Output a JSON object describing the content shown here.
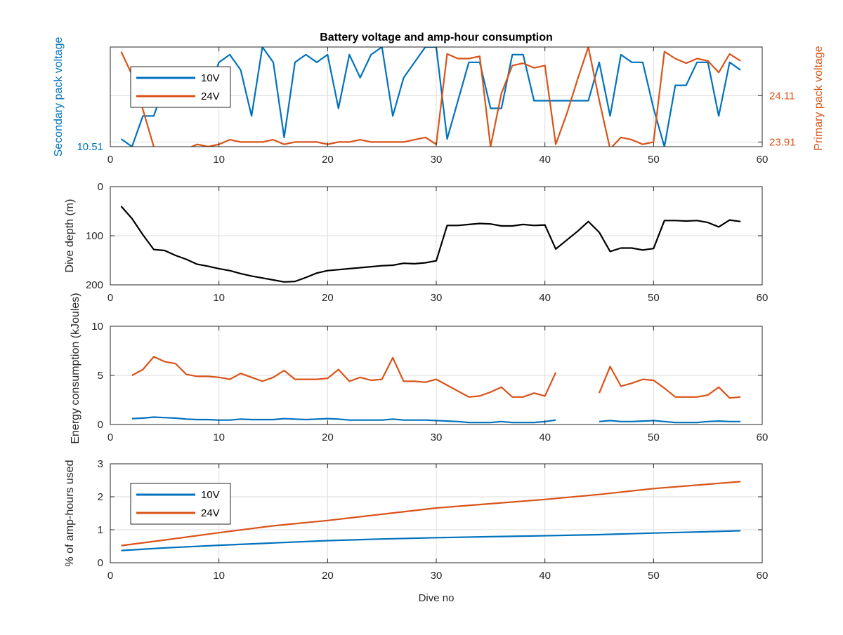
{
  "figure_title": "Battery voltage and amp-hour consumption",
  "colors": {
    "blue": "#0072BD",
    "orange": "#D95319",
    "black": "#000000",
    "grid": "#dcdcdc",
    "axis": "#262626"
  },
  "chart_data": [
    {
      "type": "line",
      "title": "Battery voltage and amp-hour consumption",
      "xlabel": "",
      "ylabel": "Secondary pack voltage",
      "ylabel_right": "Primary pack voltage",
      "xlim": [
        0,
        60
      ],
      "ylim": [
        10.51,
        10.64
      ],
      "ylim_right": [
        23.89,
        24.32
      ],
      "xticks": [
        "0",
        "10",
        "20",
        "30",
        "40",
        "50",
        "60"
      ],
      "yticks": [
        {
          "value": 10.51,
          "label": "10.51"
        }
      ],
      "yticks_right": [
        {
          "value": 23.91,
          "label": "23.91"
        },
        {
          "value": 24.11,
          "label": "24.11"
        }
      ],
      "grid": true,
      "legend": "top-left",
      "legend_entries": [
        "10V",
        "24V"
      ],
      "series": [
        {
          "name": "10V",
          "axis": "left",
          "color": "#0072BD",
          "x": [
            1,
            2,
            3,
            4,
            5,
            6,
            7,
            8,
            9,
            10,
            11,
            12,
            13,
            14,
            15,
            16,
            17,
            18,
            19,
            20,
            21,
            22,
            23,
            24,
            25,
            26,
            27,
            28,
            29,
            30,
            31,
            32,
            33,
            34,
            35,
            36,
            37,
            38,
            39,
            40,
            41,
            42,
            43,
            44,
            45,
            46,
            47,
            48,
            49,
            50,
            51,
            52,
            53,
            54,
            55,
            56,
            57,
            58
          ],
          "values": [
            10.52,
            10.51,
            10.55,
            10.55,
            10.59,
            10.6,
            10.6,
            10.61,
            10.58,
            10.62,
            10.63,
            10.61,
            10.55,
            10.64,
            10.62,
            10.522,
            10.62,
            10.63,
            10.62,
            10.63,
            10.56,
            10.63,
            10.6,
            10.63,
            10.64,
            10.55,
            10.6,
            10.62,
            10.64,
            10.64,
            10.52,
            10.57,
            10.62,
            10.62,
            10.56,
            10.56,
            10.63,
            10.63,
            10.57,
            10.57,
            10.57,
            10.57,
            10.57,
            10.57,
            10.62,
            10.55,
            10.63,
            10.62,
            10.62,
            10.56,
            10.51,
            10.59,
            10.59,
            10.62,
            10.62,
            10.55,
            10.62,
            10.61
          ]
        },
        {
          "name": "24V",
          "axis": "right",
          "color": "#D95319",
          "x": [
            1,
            2,
            3,
            4,
            5,
            6,
            7,
            8,
            9,
            10,
            11,
            12,
            13,
            14,
            15,
            16,
            17,
            18,
            19,
            20,
            21,
            22,
            23,
            24,
            25,
            26,
            27,
            28,
            29,
            30,
            31,
            32,
            33,
            34,
            35,
            36,
            37,
            38,
            39,
            40,
            41,
            42,
            43,
            44,
            45,
            46,
            47,
            48,
            49,
            50,
            51,
            52,
            53,
            54,
            55,
            56,
            57,
            58
          ],
          "values": [
            24.3,
            24.2,
            24.05,
            23.89,
            23.87,
            23.87,
            23.88,
            23.9,
            23.89,
            23.9,
            23.92,
            23.91,
            23.91,
            23.91,
            23.92,
            23.9,
            23.91,
            23.91,
            23.91,
            23.9,
            23.91,
            23.91,
            23.92,
            23.91,
            23.91,
            23.91,
            23.91,
            23.92,
            23.93,
            23.9,
            24.29,
            24.27,
            24.27,
            24.28,
            23.89,
            24.12,
            24.24,
            24.25,
            24.23,
            24.24,
            23.9,
            24.03,
            24.18,
            24.32,
            24.09,
            23.88,
            23.93,
            23.92,
            23.9,
            23.91,
            24.3,
            24.27,
            24.25,
            24.27,
            24.26,
            24.21,
            24.29,
            24.26
          ]
        }
      ]
    },
    {
      "type": "line",
      "xlabel": "",
      "ylabel": "Dive depth (m)",
      "xlim": [
        0,
        60
      ],
      "ylim": [
        0,
        200
      ],
      "reversed_y": true,
      "xticks": [
        "0",
        "10",
        "20",
        "30",
        "40",
        "50",
        "60"
      ],
      "yticks": [
        {
          "value": 0,
          "label": "0"
        },
        {
          "value": 100,
          "label": "100"
        },
        {
          "value": 200,
          "label": "200"
        }
      ],
      "grid": true,
      "series": [
        {
          "color": "#000000",
          "x": [
            1,
            2,
            3,
            4,
            5,
            6,
            7,
            8,
            9,
            10,
            11,
            12,
            13,
            14,
            15,
            16,
            17,
            18,
            19,
            20,
            21,
            22,
            23,
            24,
            25,
            26,
            27,
            28,
            29,
            30,
            31,
            32,
            33,
            34,
            35,
            36,
            37,
            38,
            39,
            40,
            41,
            42,
            43,
            44,
            45,
            46,
            47,
            48,
            49,
            50,
            51,
            52,
            53,
            54,
            55,
            56,
            57,
            58
          ],
          "values": [
            40,
            65,
            98,
            128,
            130,
            140,
            148,
            158,
            162,
            167,
            171,
            177,
            182,
            186,
            190,
            194,
            193,
            185,
            176,
            171,
            169,
            167,
            165,
            163,
            161,
            160,
            156,
            157,
            155,
            151,
            79,
            79,
            77,
            75,
            76,
            80,
            80,
            77,
            79,
            78,
            127,
            109,
            91,
            71,
            93,
            132,
            125,
            125,
            129,
            126,
            69,
            69,
            70,
            69,
            73,
            82,
            68,
            71
          ]
        }
      ]
    },
    {
      "type": "line",
      "xlabel": "",
      "ylabel": "Energy consumption (kJoules)",
      "xlim": [
        0,
        60
      ],
      "ylim": [
        0,
        10
      ],
      "xticks": [
        "0",
        "10",
        "20",
        "30",
        "40",
        "50",
        "60"
      ],
      "yticks": [
        {
          "value": 0,
          "label": "0"
        },
        {
          "value": 5,
          "label": "5"
        },
        {
          "value": 10,
          "label": "10"
        }
      ],
      "grid": true,
      "series": [
        {
          "color": "#0072BD",
          "x": [
            2,
            3,
            4,
            5,
            6,
            7,
            8,
            9,
            10,
            11,
            12,
            13,
            14,
            15,
            16,
            17,
            18,
            19,
            20,
            21,
            22,
            23,
            24,
            25,
            26,
            27,
            28,
            29,
            30,
            31,
            32,
            33,
            34,
            35,
            36,
            37,
            38,
            39,
            40,
            41,
            null,
            45,
            46,
            47,
            48,
            49,
            50,
            51,
            52,
            53,
            54,
            55,
            56,
            57,
            58
          ],
          "values": [
            0.6,
            0.65,
            0.75,
            0.7,
            0.65,
            0.55,
            0.5,
            0.5,
            0.45,
            0.45,
            0.55,
            0.5,
            0.5,
            0.5,
            0.6,
            0.55,
            0.5,
            0.55,
            0.6,
            0.55,
            0.45,
            0.45,
            0.45,
            0.45,
            0.55,
            0.45,
            0.45,
            0.45,
            0.4,
            0.35,
            0.3,
            0.2,
            0.2,
            0.2,
            0.3,
            0.2,
            0.2,
            0.2,
            0.3,
            0.45,
            null,
            0.3,
            0.4,
            0.3,
            0.3,
            0.35,
            0.4,
            0.3,
            0.2,
            0.2,
            0.2,
            0.3,
            0.35,
            0.3,
            0.3
          ]
        },
        {
          "color": "#D95319",
          "x": [
            2,
            3,
            4,
            5,
            6,
            7,
            8,
            9,
            10,
            11,
            12,
            13,
            14,
            15,
            16,
            17,
            18,
            19,
            20,
            21,
            22,
            23,
            24,
            25,
            26,
            27,
            28,
            29,
            30,
            31,
            32,
            33,
            34,
            35,
            36,
            37,
            38,
            39,
            40,
            41,
            null,
            45,
            46,
            47,
            48,
            49,
            50,
            51,
            52,
            53,
            54,
            55,
            56,
            57,
            58
          ],
          "values": [
            5.0,
            5.6,
            6.9,
            6.4,
            6.2,
            5.1,
            4.9,
            4.9,
            4.8,
            4.6,
            5.2,
            4.8,
            4.4,
            4.8,
            5.5,
            4.6,
            4.6,
            4.6,
            4.7,
            5.6,
            4.4,
            4.8,
            4.5,
            4.6,
            6.8,
            4.4,
            4.4,
            4.3,
            4.6,
            4.0,
            3.4,
            2.8,
            2.9,
            3.3,
            3.8,
            2.8,
            2.8,
            3.2,
            2.9,
            5.3,
            null,
            3.2,
            5.9,
            3.9,
            4.2,
            4.6,
            4.5,
            3.7,
            2.8,
            2.8,
            2.8,
            3.0,
            3.8,
            2.7,
            2.8
          ]
        }
      ]
    },
    {
      "type": "line",
      "xlabel": "Dive no",
      "ylabel": "% of amp-hours used",
      "xlim": [
        0,
        60
      ],
      "ylim": [
        0,
        3
      ],
      "xticks": [
        "0",
        "10",
        "20",
        "30",
        "40",
        "50",
        "60"
      ],
      "yticks": [
        {
          "value": 0,
          "label": "0"
        },
        {
          "value": 1,
          "label": "1"
        },
        {
          "value": 2,
          "label": "2"
        },
        {
          "value": 3,
          "label": "3"
        }
      ],
      "grid": true,
      "legend": "top-left",
      "legend_entries": [
        "10V",
        "24V"
      ],
      "series": [
        {
          "name": "10V",
          "color": "#0072BD",
          "x": [
            1,
            5,
            10,
            15,
            20,
            25,
            30,
            35,
            40,
            45,
            50,
            55,
            58
          ],
          "values": [
            0.37,
            0.45,
            0.53,
            0.6,
            0.67,
            0.72,
            0.76,
            0.79,
            0.82,
            0.85,
            0.9,
            0.94,
            0.97
          ]
        },
        {
          "name": "24V",
          "color": "#D95319",
          "x": [
            1,
            5,
            10,
            15,
            20,
            25,
            30,
            35,
            40,
            45,
            50,
            55,
            58
          ],
          "values": [
            0.52,
            0.69,
            0.91,
            1.12,
            1.28,
            1.47,
            1.66,
            1.79,
            1.92,
            2.07,
            2.25,
            2.38,
            2.46
          ]
        }
      ]
    }
  ]
}
